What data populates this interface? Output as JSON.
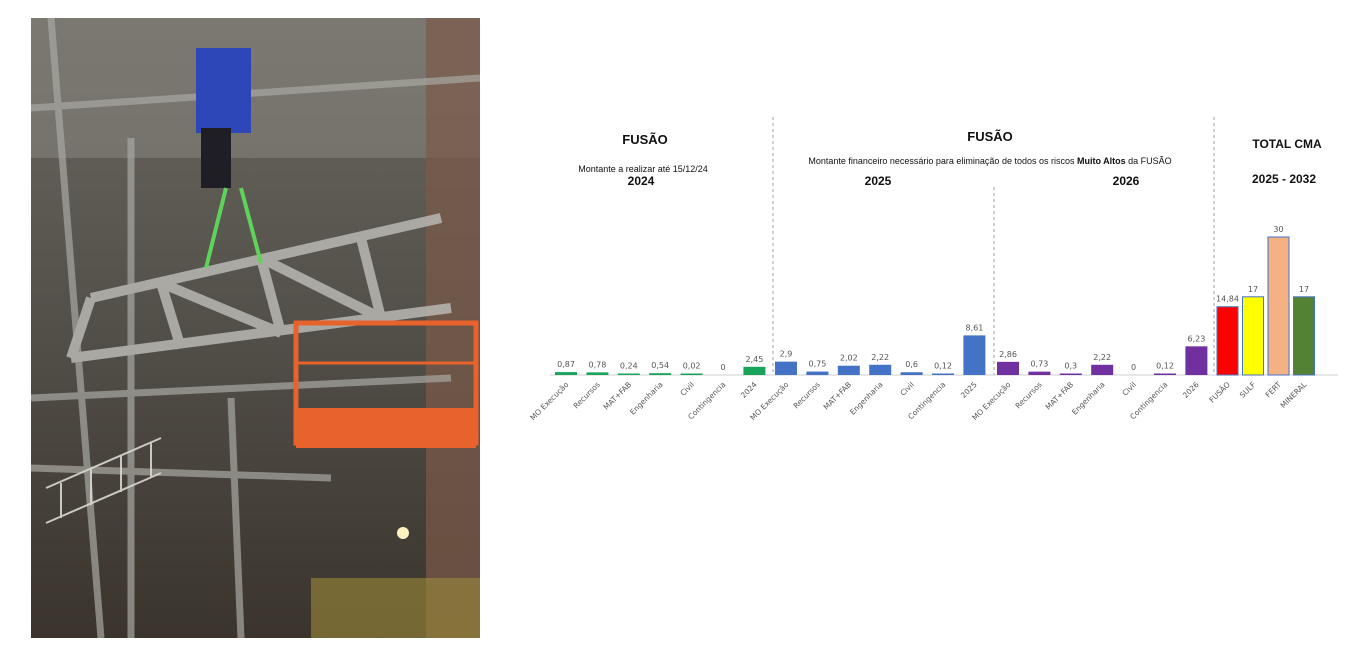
{
  "photo": {
    "description_icon": "industrial-structure-photo"
  },
  "headers": {
    "fusao_left": "FUSÃO",
    "fusao_left_sub": "Montante a realizar até 15/12/24",
    "year_2024": "2024",
    "fusao_mid": "FUSÃO",
    "mid_sub_pre": "Montante financeiro necessário para eliminação de todos os riscos ",
    "mid_sub_bold": "Muito Altos",
    "mid_sub_post": " da FUSÃO",
    "year_2025": "2025",
    "year_2026": "2026",
    "total": "TOTAL CMA",
    "total_range": "2025  - 2032"
  },
  "chart_data": [
    {
      "type": "bar",
      "group": "2024",
      "categories": [
        "MO Execução",
        "Recursos",
        "MAT+FAB",
        "Engenharia",
        "Civil",
        "Contingencia",
        "2024"
      ],
      "values": [
        0.87,
        0.78,
        0.24,
        0.54,
        0.02,
        0,
        2.45
      ],
      "labels": [
        "0,87",
        "0,78",
        "0,24",
        "0,54",
        "0,02",
        "0",
        "2,45"
      ],
      "color": "#1aa35a"
    },
    {
      "type": "bar",
      "group": "2025",
      "categories": [
        "MO Execução",
        "Recursos",
        "MAT+FAB",
        "Engenharia",
        "Civil",
        "Contingencia",
        "2025"
      ],
      "values": [
        2.9,
        0.75,
        2.02,
        2.22,
        0.6,
        0.12,
        8.61
      ],
      "labels": [
        "2,9",
        "0,75",
        "2,02",
        "2,22",
        "0,6",
        "0,12",
        "8,61"
      ],
      "color": "#4472c4"
    },
    {
      "type": "bar",
      "group": "2026",
      "categories": [
        "MO Execução",
        "Recursos",
        "MAT+FAB",
        "Engenharia",
        "Civil",
        "Contingencia",
        "2026"
      ],
      "values": [
        2.86,
        0.73,
        0.3,
        2.22,
        0,
        0.12,
        6.23
      ],
      "labels": [
        "2,86",
        "0,73",
        "0,3",
        "2,22",
        "0",
        "0,12",
        "6,23"
      ],
      "color": "#7030a0"
    },
    {
      "type": "bar",
      "group": "TOTAL CMA",
      "categories": [
        "FUSÃO",
        "SULF",
        "FERT",
        "MINERAL"
      ],
      "values": [
        14.84,
        17,
        30,
        17
      ],
      "labels": [
        "14,84",
        "17",
        "30",
        "17"
      ],
      "colors": [
        "#ff0000",
        "#ffff00",
        "#f4b183",
        "#548235"
      ]
    }
  ]
}
